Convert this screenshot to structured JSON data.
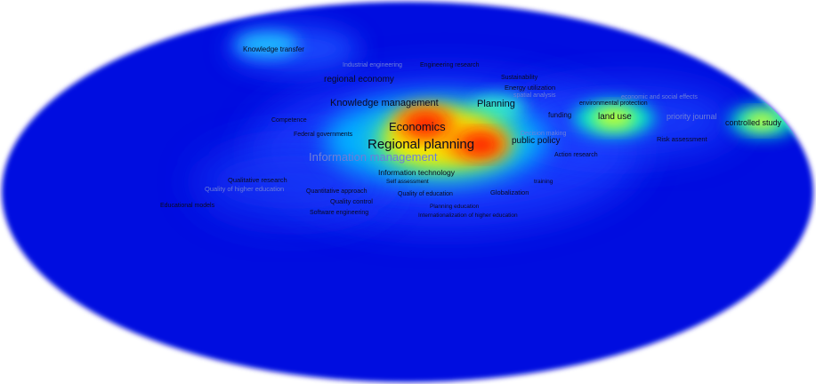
{
  "density_map": {
    "background_color": "#0010e0",
    "hot_color": "#ff1a00",
    "warm_color": "#ffe600",
    "cool_color": "#00ffe0",
    "terms": [
      {
        "id": "knowledge-transfer",
        "label": "Knowledge transfer"
      },
      {
        "id": "industrial-engineering",
        "label": "Industrial engineering"
      },
      {
        "id": "engineering-research",
        "label": "Engineering research"
      },
      {
        "id": "regional-economy",
        "label": "regional economy"
      },
      {
        "id": "sustainability",
        "label": "Sustainability"
      },
      {
        "id": "energy-utilization",
        "label": "Energy utilization"
      },
      {
        "id": "spatial-analysis",
        "label": "spatial analysis"
      },
      {
        "id": "economic-and-social-effects",
        "label": "economic and social effects"
      },
      {
        "id": "knowledge-management",
        "label": "Knowledge management"
      },
      {
        "id": "planning",
        "label": "Planning"
      },
      {
        "id": "environmental-protection",
        "label": "environmental protection"
      },
      {
        "id": "competence",
        "label": "Competence"
      },
      {
        "id": "funding",
        "label": "funding"
      },
      {
        "id": "land-use",
        "label": "land use"
      },
      {
        "id": "priority-journal",
        "label": "priority journal"
      },
      {
        "id": "controlled-study",
        "label": "controlled study"
      },
      {
        "id": "economics",
        "label": "Economics"
      },
      {
        "id": "federal-governments",
        "label": "Federal governments"
      },
      {
        "id": "decision-making",
        "label": "Decision making"
      },
      {
        "id": "public-policy",
        "label": "public policy"
      },
      {
        "id": "risk-assessment",
        "label": "Risk assessment"
      },
      {
        "id": "regional-planning",
        "label": "Regional planning"
      },
      {
        "id": "information-management",
        "label": "Information management"
      },
      {
        "id": "action-research",
        "label": "Action research"
      },
      {
        "id": "information-technology",
        "label": "Information technology"
      },
      {
        "id": "qualitative-research",
        "label": "Qualitative research"
      },
      {
        "id": "self-assessment",
        "label": "Self assessment"
      },
      {
        "id": "training",
        "label": "training"
      },
      {
        "id": "quality-of-higher-education",
        "label": "Quality of higher education"
      },
      {
        "id": "quantitative-approach",
        "label": "Quantitative approach"
      },
      {
        "id": "quality-of-education",
        "label": "Quality of education"
      },
      {
        "id": "globalization",
        "label": "Globalization"
      },
      {
        "id": "quality-control",
        "label": "Quality control"
      },
      {
        "id": "educational-models",
        "label": "Educational models"
      },
      {
        "id": "planning-education",
        "label": "Planning education"
      },
      {
        "id": "software-engineering",
        "label": "Software engineering"
      },
      {
        "id": "internationalization-of-higher-education",
        "label": "Internationalization of higher education"
      }
    ]
  }
}
